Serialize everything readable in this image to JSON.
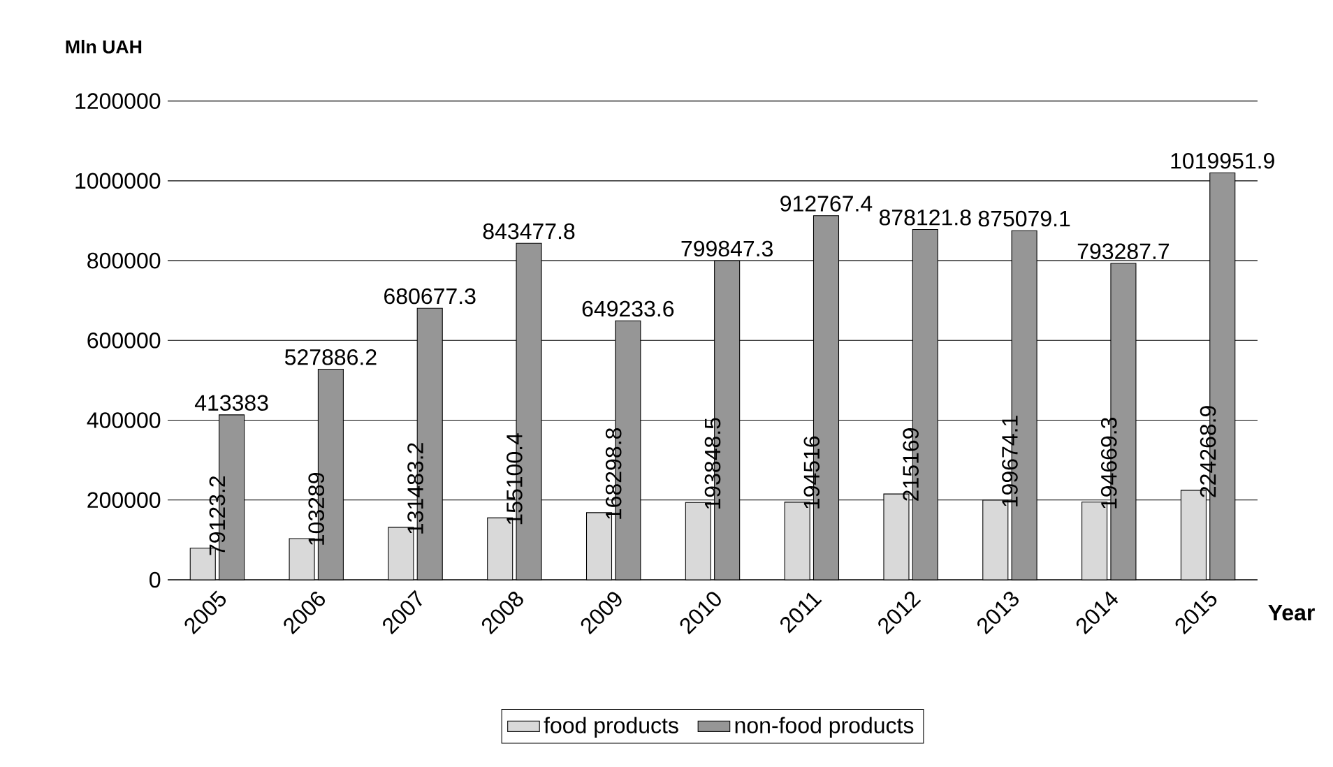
{
  "chart_data": {
    "type": "bar",
    "ylabel": "Mln UAH",
    "xlabel": "Year",
    "categories": [
      "2005",
      "2006",
      "2007",
      "2008",
      "2009",
      "2010",
      "2011",
      "2012",
      "2013",
      "2014",
      "2015"
    ],
    "series": [
      {
        "name": "food products",
        "color": "#d9d9d9",
        "values": [
          79123.2,
          103289,
          131483.2,
          155100.4,
          168298.8,
          193848.5,
          194516,
          215169,
          199674.1,
          194669.3,
          224268.9
        ]
      },
      {
        "name": "non-food products",
        "color": "#969696",
        "values": [
          413383,
          527886.2,
          680677.3,
          843477.8,
          649233.6,
          799847.3,
          912767.4,
          878121.8,
          875079.1,
          793287.7,
          1019951.9
        ]
      }
    ],
    "ylim": [
      0,
      1200000
    ],
    "yticks": [
      0,
      200000,
      400000,
      600000,
      800000,
      1000000,
      1200000
    ],
    "grid": "y",
    "legend": "bottom",
    "data_labels": true
  }
}
